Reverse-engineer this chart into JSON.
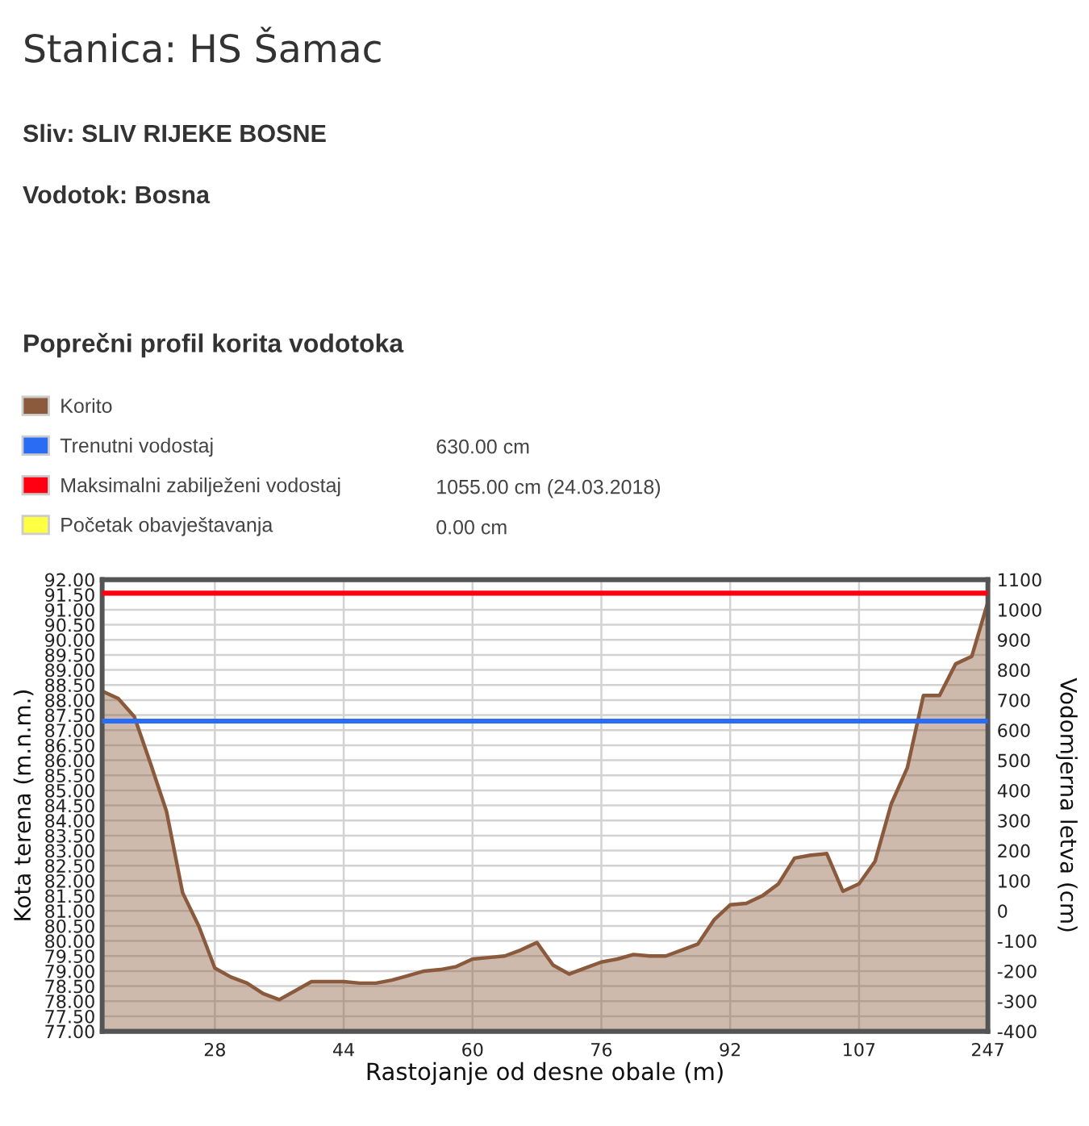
{
  "chart_data": {
    "type": "area",
    "title": "Stanica: HS Šamac",
    "subtitle": "Sliv: SLIV RIJEKE BOSNE",
    "annotations": [
      "Vodotok: Bosna",
      "Poprečni profil korita vodotoka",
      "630.00 cm",
      "1055.00 cm (24.03.2018)",
      "0.00 cm"
    ],
    "xlabel": "Rastojanje od desne obale (m)",
    "ylabel": "Kota terena (m.n.m.)",
    "y2label": "Vodomjerna letva (cm)",
    "categories": [
      null,
      null,
      null,
      null,
      null,
      null,
      null,
      "28",
      null,
      null,
      null,
      null,
      null,
      null,
      null,
      "44",
      null,
      null,
      null,
      null,
      null,
      null,
      null,
      "60",
      null,
      null,
      null,
      null,
      null,
      null,
      null,
      "76",
      null,
      null,
      null,
      null,
      null,
      null,
      null,
      "92",
      null,
      null,
      null,
      null,
      null,
      null,
      null,
      "107",
      null,
      null,
      null,
      null,
      null,
      null,
      null,
      "247"
    ],
    "series": [
      {
        "name": "Korito",
        "color": "#8b5a3c",
        "values": [
          88.3,
          88.05,
          87.45,
          85.9,
          84.3,
          81.6,
          80.5,
          79.1,
          78.8,
          78.6,
          78.25,
          78.05,
          78.35,
          78.65,
          78.65,
          78.65,
          78.6,
          78.6,
          78.7,
          78.85,
          79.0,
          79.05,
          79.15,
          79.4,
          79.45,
          79.5,
          79.7,
          79.95,
          79.2,
          78.9,
          79.1,
          79.3,
          79.4,
          79.55,
          79.5,
          79.5,
          79.7,
          79.9,
          80.7,
          81.2,
          81.25,
          81.5,
          81.9,
          82.75,
          82.85,
          82.9,
          81.65,
          81.9,
          82.65,
          84.55,
          85.75,
          88.15,
          88.15,
          89.2,
          89.45,
          91.25
        ]
      }
    ],
    "ref_lines": [
      {
        "axis": "y2",
        "value": 630,
        "label": "Trenutni vodostaj",
        "color": "#2b6cf5"
      },
      {
        "axis": "y2",
        "value": 1055,
        "label": "Maksimalni zabilježeni vodostaj",
        "color": "#ff0013"
      },
      {
        "value": null,
        "label": "Početak obavještavanja",
        "color": "#ffff44"
      }
    ],
    "ylim": [
      77,
      92
    ],
    "yticks": [
      {
        "value": 77,
        "label": "77.00"
      },
      {
        "value": 77.5,
        "label": "77.50"
      },
      {
        "value": 78,
        "label": "78.00"
      },
      {
        "value": 78.5,
        "label": "78.50"
      },
      {
        "value": 79,
        "label": "79.00"
      },
      {
        "value": 79.5,
        "label": "79.50"
      },
      {
        "value": 80,
        "label": "80.00"
      },
      {
        "value": 80.5,
        "label": "80.50"
      },
      {
        "value": 81,
        "label": "81.00"
      },
      {
        "value": 81.5,
        "label": "81.50"
      },
      {
        "value": 82,
        "label": "82.00"
      },
      {
        "value": 82.5,
        "label": "82.50"
      },
      {
        "value": 83,
        "label": "83.00"
      },
      {
        "value": 83.5,
        "label": "83.50"
      },
      {
        "value": 84,
        "label": "84.00"
      },
      {
        "value": 84.5,
        "label": "84.50"
      },
      {
        "value": 85,
        "label": "85.00"
      },
      {
        "value": 85.5,
        "label": "85.50"
      },
      {
        "value": 86,
        "label": "86.00"
      },
      {
        "value": 86.5,
        "label": "86.50"
      },
      {
        "value": 87,
        "label": "87.00"
      },
      {
        "value": 87.5,
        "label": "87.50"
      },
      {
        "value": 88,
        "label": "88.00"
      },
      {
        "value": 88.5,
        "label": "88.50"
      },
      {
        "value": 89,
        "label": "89.00"
      },
      {
        "value": 89.5,
        "label": "89.50"
      },
      {
        "value": 90,
        "label": "90.00"
      },
      {
        "value": 90.5,
        "label": "90.50"
      },
      {
        "value": 91,
        "label": "91.00"
      },
      {
        "value": 91.5,
        "label": "91.50"
      },
      {
        "value": 92,
        "label": "92.00"
      }
    ],
    "y2lim": [
      -400,
      1100
    ],
    "y2ticks": [
      -400,
      -300,
      -200,
      -100,
      0,
      100,
      200,
      300,
      400,
      500,
      600,
      700,
      800,
      900,
      1000,
      1100
    ],
    "grid": true,
    "legend": "top left"
  }
}
